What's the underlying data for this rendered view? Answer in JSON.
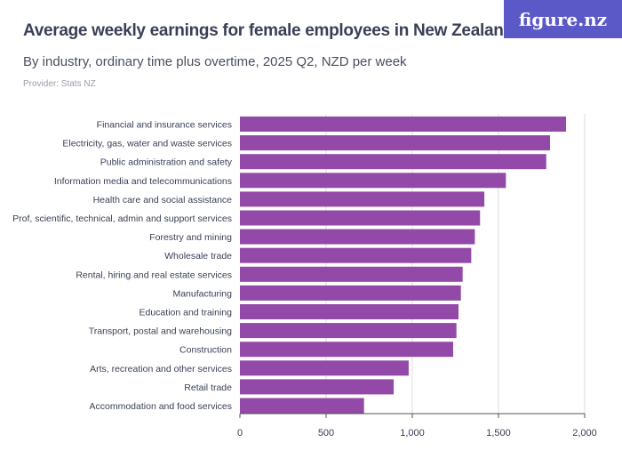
{
  "header": {
    "title": "Average weekly earnings for female employees in New Zealand",
    "subtitle": "By industry, ordinary time plus overtime, 2025 Q2, NZD per week",
    "provider": "Provider: Stats NZ",
    "logo": "figure.nz"
  },
  "chart_data": {
    "type": "bar",
    "orientation": "horizontal",
    "title": "Average weekly earnings for female employees in New Zealand",
    "subtitle": "By industry, ordinary time plus overtime, 2025 Q2, NZD per week",
    "categories": [
      "Financial and insurance services",
      "Electricity, gas, water and waste services",
      "Public administration and safety",
      "Information media and telecommunications",
      "Health care and social assistance",
      "Prof, scientific, technical, admin and support services",
      "Forestry and mining",
      "Wholesale trade",
      "Rental, hiring and real estate services",
      "Manufacturing",
      "Education and training",
      "Transport, postal and warehousing",
      "Construction",
      "Arts, recreation and other services",
      "Retail trade",
      "Accommodation and food services"
    ],
    "values": [
      1892,
      1799,
      1777,
      1543,
      1418,
      1393,
      1363,
      1342,
      1292,
      1282,
      1268,
      1256,
      1237,
      979,
      892,
      720
    ],
    "xlim": [
      0,
      2000
    ],
    "ticks": [
      0,
      500,
      1000,
      1500,
      2000
    ],
    "tick_labels": [
      "0",
      "500",
      "1,000",
      "1,500",
      "2,000"
    ],
    "grid": true,
    "bar_color": "#9349a8",
    "xlabel": "",
    "ylabel": ""
  }
}
